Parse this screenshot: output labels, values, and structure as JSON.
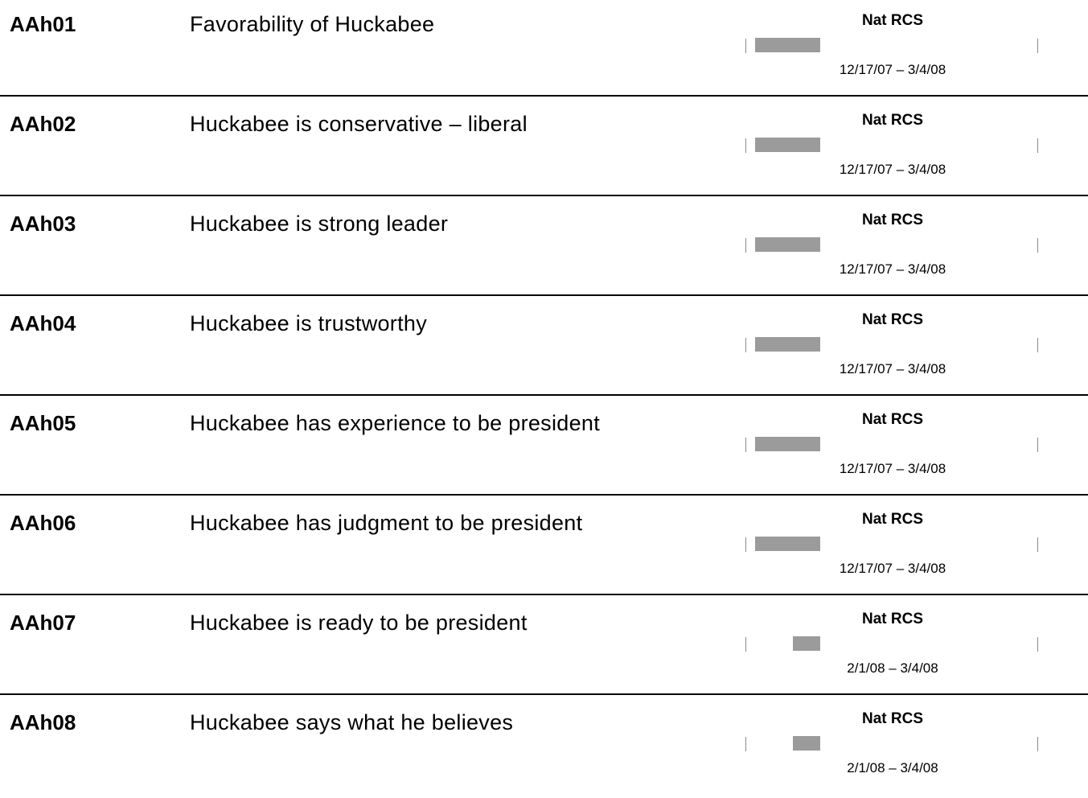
{
  "rows": [
    {
      "code": "AAh01",
      "desc": "Favorability of Huckabee",
      "series": "Nat RCS",
      "range": "12/17/07 – 3/4/08"
    },
    {
      "code": "AAh02",
      "desc": "Huckabee is conservative – liberal",
      "series": "Nat RCS",
      "range": "12/17/07 – 3/4/08"
    },
    {
      "code": "AAh03",
      "desc": "Huckabee is strong leader",
      "series": "Nat RCS",
      "range": "12/17/07 – 3/4/08"
    },
    {
      "code": "AAh04",
      "desc": "Huckabee is trustworthy",
      "series": "Nat RCS",
      "range": "12/17/07 – 3/4/08"
    },
    {
      "code": "AAh05",
      "desc": "Huckabee has experience to be president",
      "series": "Nat RCS",
      "range": "12/17/07 – 3/4/08"
    },
    {
      "code": "AAh06",
      "desc": "Huckabee has judgment to be president",
      "series": "Nat RCS",
      "range": "12/17/07 – 3/4/08"
    },
    {
      "code": "AAh07",
      "desc": "Huckabee is ready to be president",
      "series": "Nat RCS",
      "range": "2/1/08 – 3/4/08"
    },
    {
      "code": "AAh08",
      "desc": "Huckabee says what he believes",
      "series": "Nat RCS",
      "range": "2/1/08 – 3/4/08"
    }
  ],
  "colors": {
    "bar": "#9b9b9b",
    "tick": "#8a8a8a",
    "separator": "#000000"
  }
}
